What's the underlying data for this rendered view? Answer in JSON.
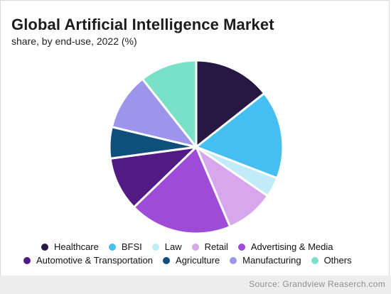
{
  "chart_data": {
    "type": "pie",
    "title": "Global Artificial Intelligence Market",
    "subtitle": "share, by end-use, 2022 (%)",
    "legend_position": "bottom",
    "slices": [
      {
        "label": "Healthcare",
        "value": 13.5,
        "color": "#261843"
      },
      {
        "label": "BFSI",
        "value": 15.5,
        "color": "#45bff1"
      },
      {
        "label": "Law",
        "value": 3.5,
        "color": "#c2ebf9"
      },
      {
        "label": "Retail",
        "value": 8.5,
        "color": "#d8a6ec"
      },
      {
        "label": "Advertising & Media",
        "value": 18.0,
        "color": "#9e4bd7"
      },
      {
        "label": "Automotive & Transportation",
        "value": 9.5,
        "color": "#521a83"
      },
      {
        "label": "Agriculture",
        "value": 5.5,
        "color": "#0f4f7c"
      },
      {
        "label": "Manufacturing",
        "value": 10.0,
        "color": "#9d95ec"
      },
      {
        "label": "Others",
        "value": 10.0,
        "color": "#7ae1c9"
      }
    ]
  },
  "legend": {
    "row1": [
      {
        "label": "Healthcare",
        "color": "#261843"
      },
      {
        "label": "BFSI",
        "color": "#45bff1"
      },
      {
        "label": "Law",
        "color": "#c2ebf9"
      },
      {
        "label": "Retail",
        "color": "#d8a6ec"
      },
      {
        "label": "Advertising & Media",
        "color": "#9e4bd7"
      }
    ],
    "row2": [
      {
        "label": "Automotive & Transportation",
        "color": "#521a83"
      },
      {
        "label": "Agriculture",
        "color": "#0f4f7c"
      },
      {
        "label": "Manufacturing",
        "color": "#9d95ec"
      },
      {
        "label": "Others",
        "color": "#7ae1c9"
      }
    ]
  },
  "source_text": "Source: Grandview Reaserch.com"
}
